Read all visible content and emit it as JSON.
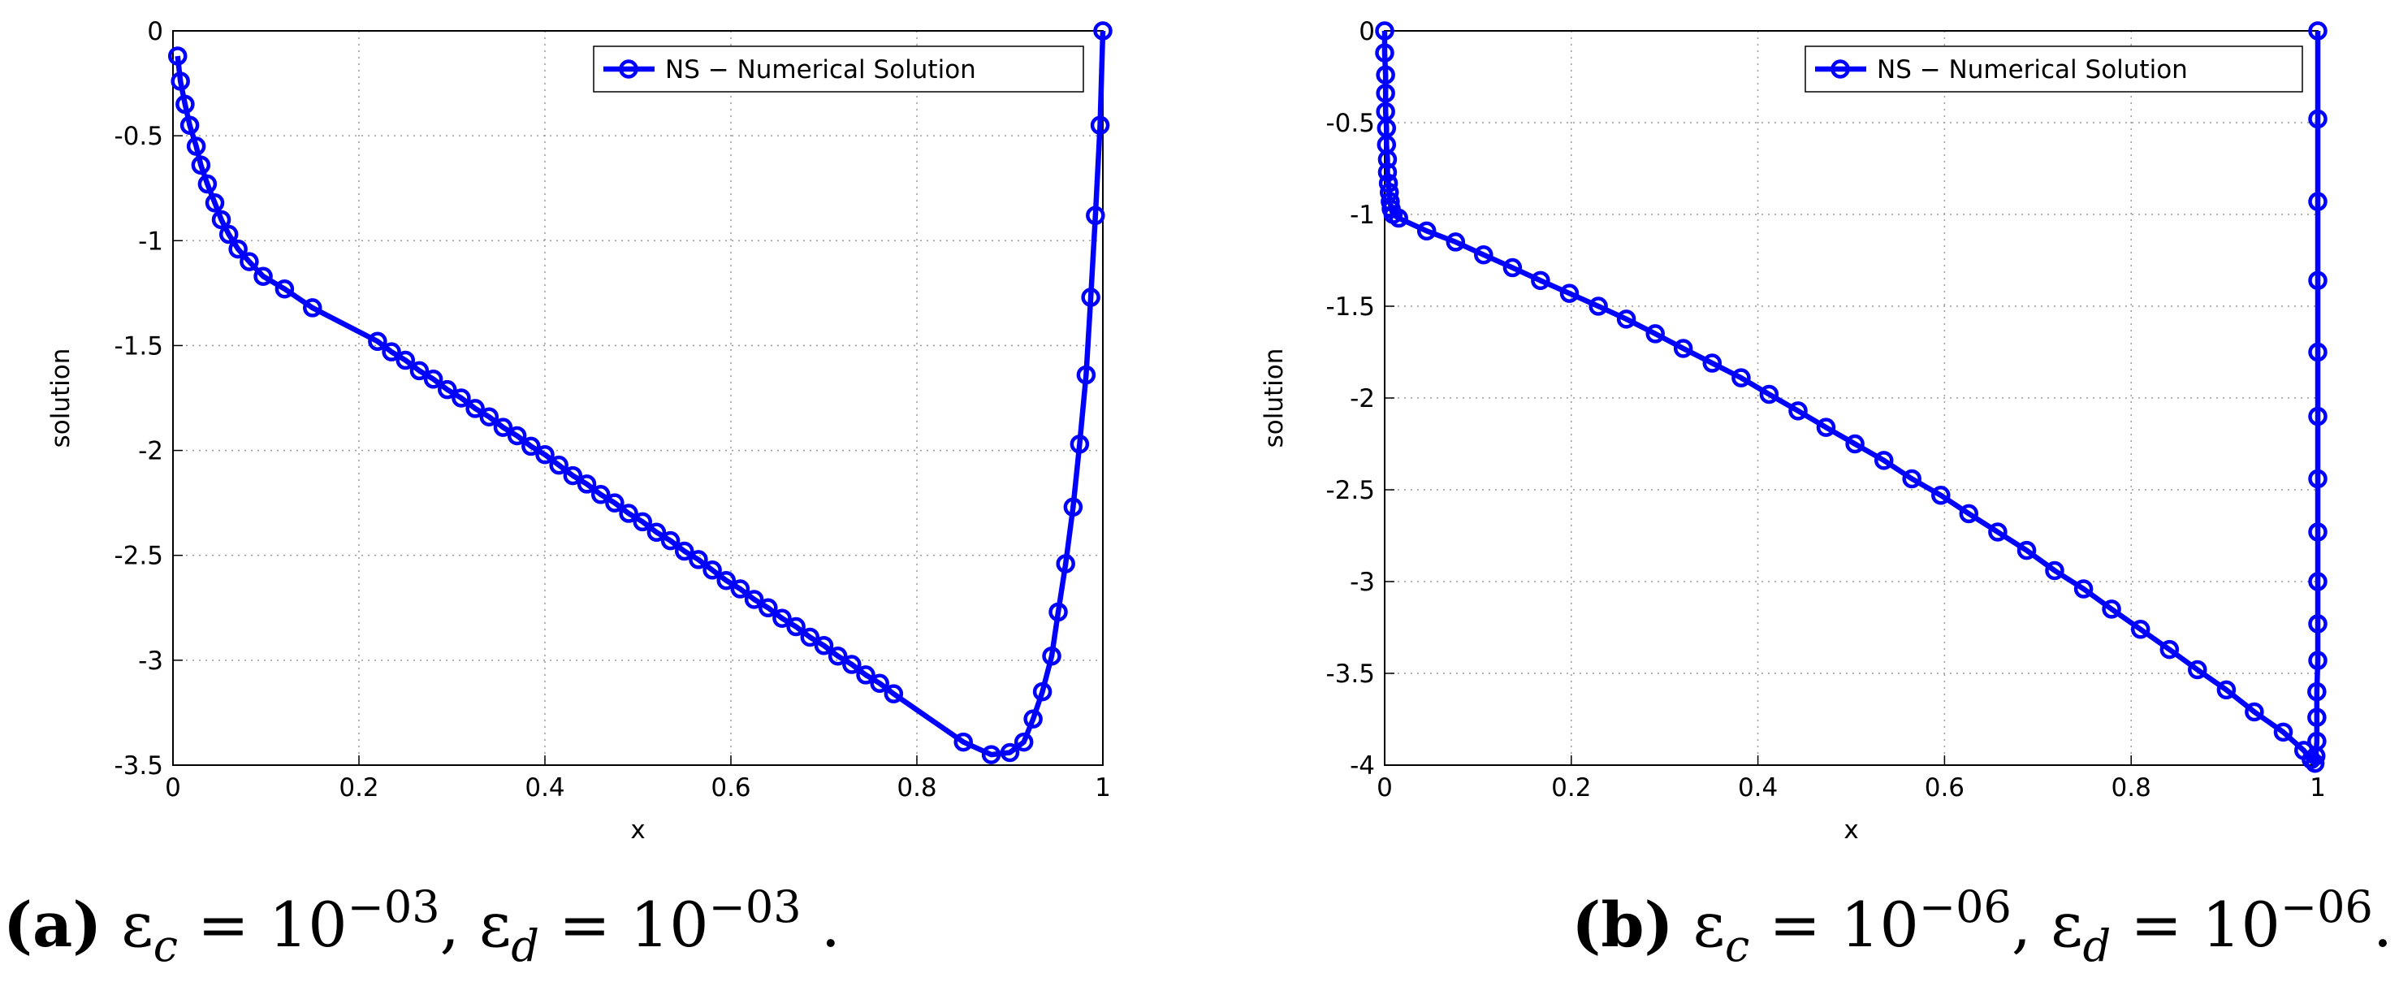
{
  "chart_data": [
    {
      "type": "line",
      "x_label": "x",
      "y_label": "solution",
      "xlim": [
        0,
        1
      ],
      "ylim": [
        -3.5,
        0
      ],
      "xticks": [
        0,
        0.2,
        0.4,
        0.6,
        0.8,
        1
      ],
      "yticks": [
        0,
        -0.5,
        -1,
        -1.5,
        -2,
        -2.5,
        -3,
        -3.5
      ],
      "grid": true,
      "legend": "upper right",
      "x": [
        0.005,
        0.008,
        0.013,
        0.018,
        0.025,
        0.03,
        0.037,
        0.045,
        0.052,
        0.06,
        0.07,
        0.082,
        0.097,
        0.12,
        0.15,
        0.22,
        0.235,
        0.25,
        0.265,
        0.28,
        0.295,
        0.31,
        0.325,
        0.34,
        0.355,
        0.37,
        0.385,
        0.4,
        0.415,
        0.43,
        0.445,
        0.46,
        0.475,
        0.49,
        0.505,
        0.52,
        0.535,
        0.55,
        0.565,
        0.58,
        0.595,
        0.61,
        0.625,
        0.64,
        0.655,
        0.67,
        0.685,
        0.7,
        0.715,
        0.73,
        0.745,
        0.76,
        0.775,
        0.85,
        0.88,
        0.9,
        0.915,
        0.925,
        0.935,
        0.945,
        0.952,
        0.96,
        0.968,
        0.975,
        0.982,
        0.987,
        0.992,
        0.997,
        1.0
      ],
      "series": [
        {
          "name": "NS − Numerical Solution",
          "color": "#0000ff",
          "values": [
            -0.12,
            -0.24,
            -0.35,
            -0.45,
            -0.55,
            -0.64,
            -0.73,
            -0.82,
            -0.9,
            -0.97,
            -1.04,
            -1.1,
            -1.17,
            -1.23,
            -1.32,
            -1.48,
            -1.53,
            -1.57,
            -1.62,
            -1.66,
            -1.71,
            -1.75,
            -1.8,
            -1.84,
            -1.89,
            -1.93,
            -1.98,
            -2.02,
            -2.07,
            -2.12,
            -2.16,
            -2.21,
            -2.25,
            -2.3,
            -2.34,
            -2.39,
            -2.43,
            -2.48,
            -2.52,
            -2.57,
            -2.62,
            -2.66,
            -2.71,
            -2.75,
            -2.8,
            -2.84,
            -2.89,
            -2.93,
            -2.98,
            -3.02,
            -3.07,
            -3.11,
            -3.16,
            -3.39,
            -3.45,
            -3.44,
            -3.39,
            -3.28,
            -3.15,
            -2.98,
            -2.77,
            -2.54,
            -2.27,
            -1.97,
            -1.64,
            -1.27,
            -0.88,
            -0.45,
            0
          ]
        }
      ]
    },
    {
      "type": "line",
      "x_label": "x",
      "y_label": "solution",
      "xlim": [
        0,
        1
      ],
      "ylim": [
        -4,
        0
      ],
      "xticks": [
        0,
        0.2,
        0.4,
        0.6,
        0.8,
        1
      ],
      "yticks": [
        0,
        -0.5,
        -1,
        -1.5,
        -2,
        -2.5,
        -3,
        -3.5,
        -4
      ],
      "grid": true,
      "legend": "upper right",
      "x": [
        0,
        0,
        0.001,
        0.001,
        0.001,
        0.002,
        0.002,
        0.003,
        0.003,
        0.004,
        0.005,
        0.006,
        0.007,
        0.009,
        0.015,
        0.045,
        0.076,
        0.106,
        0.137,
        0.167,
        0.198,
        0.229,
        0.259,
        0.29,
        0.32,
        0.351,
        0.382,
        0.412,
        0.443,
        0.473,
        0.504,
        0.535,
        0.565,
        0.596,
        0.626,
        0.657,
        0.688,
        0.718,
        0.749,
        0.779,
        0.81,
        0.841,
        0.871,
        0.902,
        0.932,
        0.963,
        0.985,
        0.993,
        0.997,
        0.998,
        0.999,
        0.999,
        0.999,
        1,
        1,
        1,
        1,
        1,
        1,
        1,
        1,
        1,
        1,
        1
      ],
      "series": [
        {
          "name": "NS − Numerical Solution",
          "color": "#0000ff",
          "values": [
            0,
            -0.12,
            -0.24,
            -0.34,
            -0.44,
            -0.53,
            -0.62,
            -0.7,
            -0.77,
            -0.83,
            -0.88,
            -0.93,
            -0.97,
            -1.0,
            -1.02,
            -1.09,
            -1.15,
            -1.22,
            -1.29,
            -1.36,
            -1.43,
            -1.5,
            -1.57,
            -1.65,
            -1.73,
            -1.81,
            -1.89,
            -1.98,
            -2.07,
            -2.16,
            -2.25,
            -2.34,
            -2.44,
            -2.53,
            -2.63,
            -2.73,
            -2.83,
            -2.94,
            -3.04,
            -3.15,
            -3.26,
            -3.37,
            -3.48,
            -3.59,
            -3.71,
            -3.82,
            -3.92,
            -3.97,
            -3.99,
            -3.95,
            -3.87,
            -3.74,
            -3.6,
            -3.43,
            -3.23,
            -3.0,
            -2.73,
            -2.44,
            -2.1,
            -1.75,
            -1.36,
            -0.93,
            -0.48,
            0
          ]
        }
      ]
    }
  ],
  "captions": [
    {
      "label": "(a)",
      "parts": [
        {
          "text": " ε"
        },
        {
          "sub": "c"
        },
        {
          "text": " = 10"
        },
        {
          "sup": "−03"
        },
        {
          "text": ", ε"
        },
        {
          "sub": "d"
        },
        {
          "text": " = 10"
        },
        {
          "sup": "−03"
        },
        {
          "text": " ."
        }
      ]
    },
    {
      "label": "(b)",
      "parts": [
        {
          "text": " ε"
        },
        {
          "sub": "c"
        },
        {
          "text": " = 10"
        },
        {
          "sup": "−06"
        },
        {
          "text": ", ε"
        },
        {
          "sub": "d"
        },
        {
          "text": " = 10"
        },
        {
          "sup": "−06"
        },
        {
          "text": "."
        }
      ]
    }
  ]
}
